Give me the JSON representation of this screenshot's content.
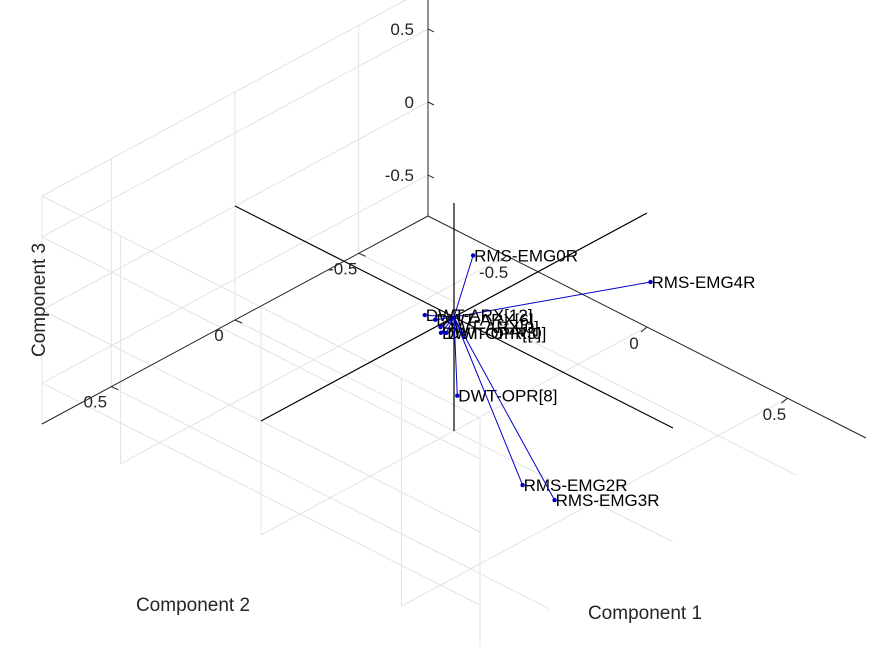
{
  "chart_data": {
    "type": "biplot-3d",
    "xlabel": "Component 1",
    "ylabel": "Component 2",
    "zlabel": "Component 3",
    "x_ticks": [
      "-0.5",
      "0",
      "0.5"
    ],
    "y_ticks": [
      "-0.5",
      "0",
      "0.5"
    ],
    "z_ticks": [
      "-0.5",
      "0",
      "0.5"
    ],
    "xlim": [
      -0.78,
      0.78
    ],
    "ylim": [
      -0.78,
      0.78
    ],
    "zlim": [
      -0.78,
      0.78
    ],
    "grid": true,
    "vector_color": "#0000c8",
    "vectors": [
      {
        "name": "RMS-EMG4R",
        "x": 0.55,
        "y": -0.17,
        "z": 0.62
      },
      {
        "name": "RMS-EMG0R",
        "x": -0.02,
        "y": -0.1,
        "z": 0.31
      },
      {
        "name": "DWT-ARX[12]",
        "x": -0.06,
        "y": 0.05,
        "z": 0.0
      },
      {
        "name": "DWT-ARX[6]",
        "x": -0.04,
        "y": 0.03,
        "z": -0.03
      },
      {
        "name": "DWT-ARX[0]",
        "x": -0.03,
        "y": 0.02,
        "z": -0.08
      },
      {
        "name": "DWT-OPR[3]",
        "x": -0.02,
        "y": 0.03,
        "z": -0.1
      },
      {
        "name": "DWT-OPR[0]",
        "x": -0.01,
        "y": 0.02,
        "z": -0.1
      },
      {
        "name": "DWT-OPR[8]",
        "x": 0.1,
        "y": 0.1,
        "z": -0.35
      },
      {
        "name": "RMS-EMG2R",
        "x": 0.35,
        "y": 0.12,
        "z": -0.7
      },
      {
        "name": "RMS-EMG3R",
        "x": 0.42,
        "y": 0.07,
        "z": -0.78
      }
    ]
  }
}
